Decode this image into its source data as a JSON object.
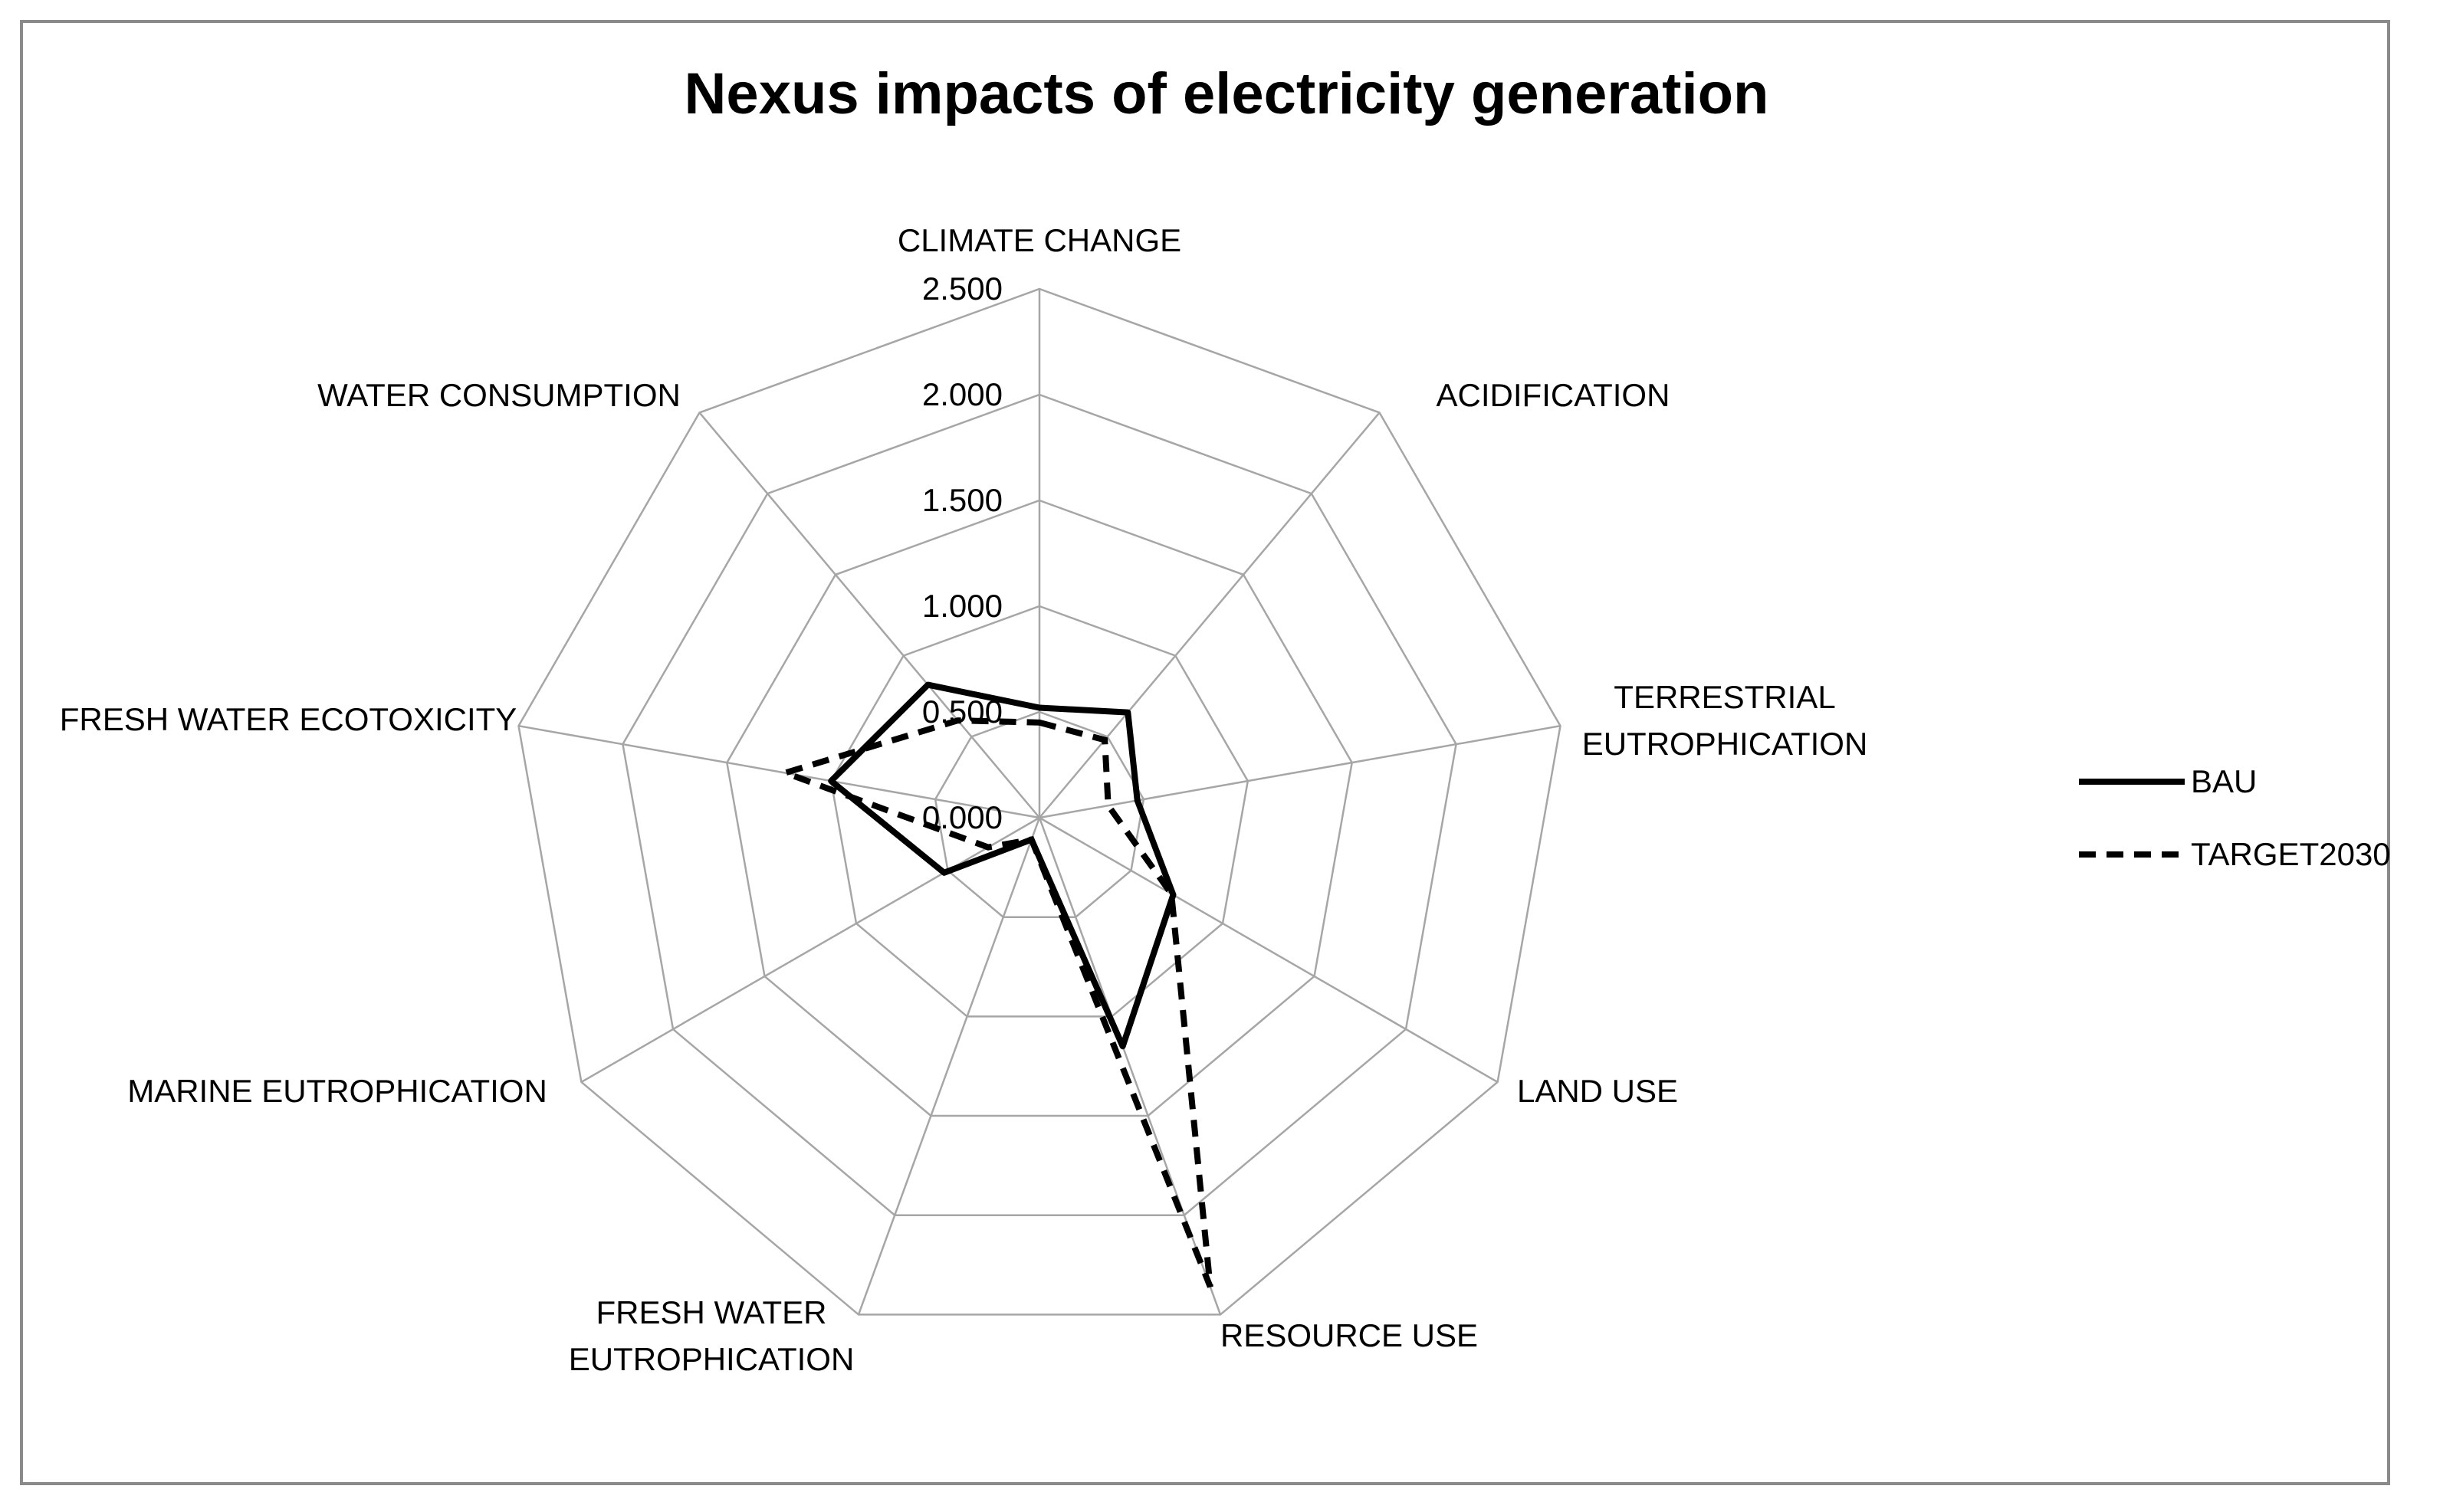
{
  "chart_data": {
    "type": "radar",
    "title": "Nexus impacts of electricity generation",
    "axes": [
      [
        "CLIMATE CHANGE"
      ],
      [
        "ACIDIFICATION"
      ],
      [
        "TERRESTRIAL",
        "EUTROPHICATION"
      ],
      [
        "LAND USE"
      ],
      [
        "RESOURCE USE"
      ],
      [
        "FRESH WATER",
        "EUTROPHICATION"
      ],
      [
        "MARINE  EUTROPHICATION"
      ],
      [
        "FRESH WATER ECOTOXICITY"
      ],
      [
        "WATER CONSUMPTION"
      ]
    ],
    "axis_range": [
      0,
      2.5
    ],
    "ticks": [
      0,
      0.5,
      1.0,
      1.5,
      2.0,
      2.5
    ],
    "tick_labels": [
      "0.000",
      "0.500",
      "1.000",
      "1.500",
      "2.000",
      "2.500"
    ],
    "series": [
      {
        "name": "BAU",
        "line_style": "solid",
        "color": "#000000",
        "values": [
          0.52,
          0.65,
          0.47,
          0.73,
          1.15,
          0.11,
          0.52,
          1.0,
          0.82
        ]
      },
      {
        "name": "TARGET2030",
        "line_style": "dashed",
        "color": "#000000",
        "values": [
          0.45,
          0.48,
          0.33,
          0.72,
          2.36,
          0.11,
          0.28,
          1.22,
          0.6
        ]
      }
    ],
    "legend_position": "right",
    "grid": true
  }
}
